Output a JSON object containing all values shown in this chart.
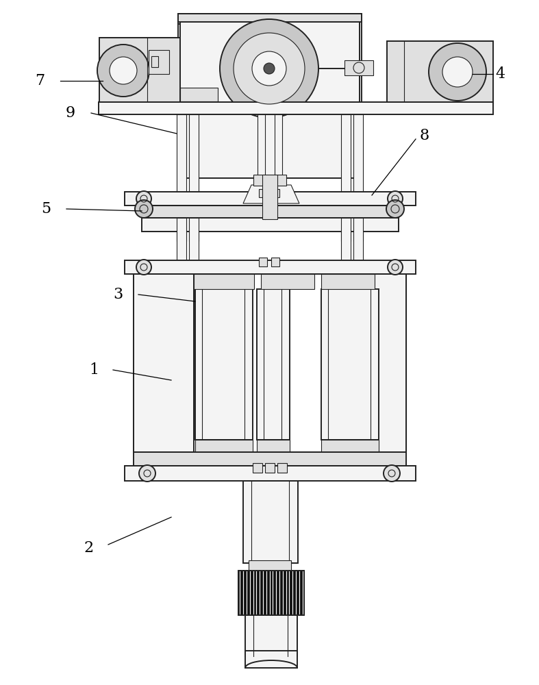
{
  "bg": "#ffffff",
  "lc": "#222222",
  "fc_white": "#ffffff",
  "fc_light": "#f4f4f4",
  "fc_mid": "#e0e0e0",
  "fc_dark": "#c8c8c8",
  "fc_black": "#111111",
  "figsize": [
    7.87,
    10.0
  ],
  "dpi": 100
}
